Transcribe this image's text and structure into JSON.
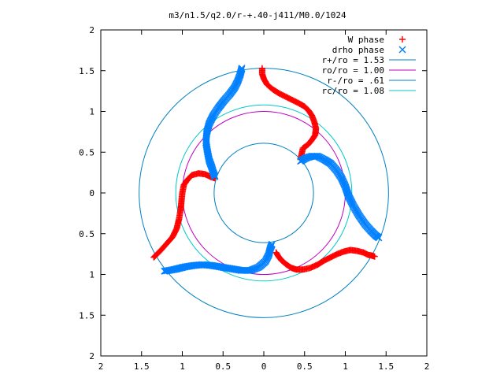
{
  "chart_data": {
    "type": "scatter",
    "title": "m3/n1.5/q2.0/r-+.40-j411/M0.0/1024",
    "xlabel": "",
    "ylabel": "",
    "xlim": [
      -2,
      2
    ],
    "ylim": [
      -2,
      2
    ],
    "aspect": "equal",
    "grid": false,
    "legend_position": "top-right",
    "x_ticks": [
      -2,
      -1.5,
      -1,
      -0.5,
      0,
      0.5,
      1,
      1.5,
      2
    ],
    "x_tick_labels": [
      "2",
      "1.5",
      "1",
      "0.5",
      "0",
      "0.5",
      "1",
      "1.5",
      "2"
    ],
    "y_ticks": [
      2,
      1.5,
      1,
      0.5,
      0,
      -0.5,
      -1,
      -1.5,
      -2
    ],
    "y_tick_labels": [
      "2",
      "1.5",
      "1",
      "0.5",
      "0",
      "0.5",
      "1",
      "1.5",
      "2"
    ],
    "series": [
      {
        "name": "W phase",
        "kind": "points",
        "marker": "+",
        "color": "#ff0000",
        "branches": [
          [
            [
              -0.02,
              1.53
            ],
            [
              -0.02,
              1.46
            ],
            [
              0.0,
              1.4
            ],
            [
              0.04,
              1.33
            ],
            [
              0.11,
              1.27
            ],
            [
              0.19,
              1.22
            ],
            [
              0.27,
              1.18
            ],
            [
              0.35,
              1.14
            ],
            [
              0.43,
              1.1
            ],
            [
              0.5,
              1.06
            ],
            [
              0.55,
              1.01
            ],
            [
              0.59,
              0.95
            ],
            [
              0.62,
              0.87
            ],
            [
              0.64,
              0.79
            ],
            [
              0.63,
              0.71
            ],
            [
              0.59,
              0.65
            ],
            [
              0.54,
              0.59
            ],
            [
              0.48,
              0.55
            ],
            [
              0.45,
              0.41
            ]
          ],
          [
            [
              -0.6,
              0.18
            ],
            [
              -0.66,
              0.2
            ],
            [
              -0.72,
              0.23
            ],
            [
              -0.8,
              0.24
            ],
            [
              -0.88,
              0.22
            ],
            [
              -0.93,
              0.17
            ],
            [
              -0.98,
              0.1
            ],
            [
              -1.0,
              0.0
            ],
            [
              -1.01,
              -0.1
            ],
            [
              -1.02,
              -0.2
            ],
            [
              -1.04,
              -0.32
            ],
            [
              -1.07,
              -0.44
            ],
            [
              -1.12,
              -0.54
            ],
            [
              -1.19,
              -0.62
            ],
            [
              -1.26,
              -0.7
            ],
            [
              -1.32,
              -0.76
            ],
            [
              -1.35,
              -0.79
            ]
          ],
          [
            [
              0.15,
              -0.73
            ],
            [
              0.18,
              -0.78
            ],
            [
              0.22,
              -0.83
            ],
            [
              0.28,
              -0.88
            ],
            [
              0.34,
              -0.92
            ],
            [
              0.4,
              -0.94
            ],
            [
              0.48,
              -0.94
            ],
            [
              0.57,
              -0.92
            ],
            [
              0.66,
              -0.88
            ],
            [
              0.74,
              -0.83
            ],
            [
              0.82,
              -0.79
            ],
            [
              0.9,
              -0.75
            ],
            [
              0.98,
              -0.72
            ],
            [
              1.06,
              -0.7
            ],
            [
              1.14,
              -0.71
            ],
            [
              1.22,
              -0.73
            ],
            [
              1.28,
              -0.76
            ],
            [
              1.33,
              -0.77
            ],
            [
              1.36,
              -0.78
            ]
          ]
        ]
      },
      {
        "name": "drho phase",
        "kind": "points",
        "marker": "x",
        "color": "#0080ff",
        "branches": [
          [
            [
              -0.27,
              1.53
            ],
            [
              -0.29,
              1.45
            ],
            [
              -0.32,
              1.37
            ],
            [
              -0.36,
              1.29
            ],
            [
              -0.42,
              1.21
            ],
            [
              -0.49,
              1.13
            ],
            [
              -0.56,
              1.04
            ],
            [
              -0.62,
              0.95
            ],
            [
              -0.67,
              0.85
            ],
            [
              -0.7,
              0.74
            ],
            [
              -0.71,
              0.62
            ],
            [
              -0.69,
              0.5
            ],
            [
              -0.67,
              0.4
            ],
            [
              -0.64,
              0.32
            ],
            [
              -0.62,
              0.25
            ],
            [
              -0.6,
              0.2
            ]
          ],
          [
            [
              0.45,
              0.39
            ],
            [
              0.52,
              0.43
            ],
            [
              0.59,
              0.45
            ],
            [
              0.66,
              0.45
            ],
            [
              0.74,
              0.41
            ],
            [
              0.82,
              0.36
            ],
            [
              0.89,
              0.28
            ],
            [
              0.95,
              0.19
            ],
            [
              1.0,
              0.08
            ],
            [
              1.04,
              -0.04
            ],
            [
              1.1,
              -0.16
            ],
            [
              1.17,
              -0.28
            ],
            [
              1.24,
              -0.38
            ],
            [
              1.31,
              -0.46
            ],
            [
              1.37,
              -0.52
            ],
            [
              1.41,
              -0.55
            ]
          ],
          [
            [
              -1.22,
              -0.96
            ],
            [
              -1.1,
              -0.94
            ],
            [
              -0.98,
              -0.91
            ],
            [
              -0.86,
              -0.89
            ],
            [
              -0.75,
              -0.88
            ],
            [
              -0.64,
              -0.89
            ],
            [
              -0.52,
              -0.91
            ],
            [
              -0.4,
              -0.93
            ],
            [
              -0.28,
              -0.95
            ],
            [
              -0.16,
              -0.95
            ],
            [
              -0.06,
              -0.91
            ],
            [
              0.02,
              -0.84
            ],
            [
              0.06,
              -0.76
            ],
            [
              0.08,
              -0.68
            ],
            [
              0.1,
              -0.63
            ]
          ]
        ]
      },
      {
        "name": "r+/ro = 1.53",
        "kind": "circle",
        "radius": 1.53,
        "color": "#0080c0"
      },
      {
        "name": "ro/ro = 1.00",
        "kind": "circle",
        "radius": 1.0,
        "color": "#c000c0"
      },
      {
        "name": "r-/ro = .61",
        "kind": "circle",
        "radius": 0.61,
        "color": "#0080c0"
      },
      {
        "name": "rc/ro = 1.08",
        "kind": "circle",
        "radius": 1.08,
        "color": "#00c8c8"
      }
    ]
  }
}
